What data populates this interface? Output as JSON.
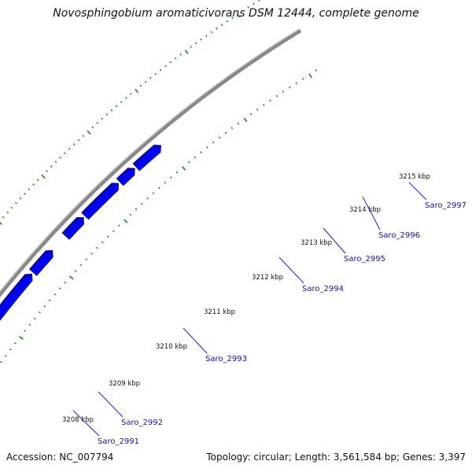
{
  "title": "Novosphingobium aromaticivorans DSM 12444, complete genome",
  "accession": "Accession: NC_007794",
  "topology": "Topology: circular; Length: 3,561,584 bp; Genes: 3,397",
  "colors": {
    "backbone": "#888888",
    "gene_fill": "#0000ee",
    "gene_shadow": "#00007a",
    "tick": "#1a8a1a",
    "label": "#1010c0",
    "leader": "#2020d0"
  },
  "kbp_labels": [
    "3208 kbp",
    "3209 kbp",
    "3210 kbp",
    "3211 kbp",
    "3212 kbp",
    "3213 kbp",
    "3214 kbp",
    "3215 kbp"
  ],
  "genes": [
    {
      "name": "Saro_2991"
    },
    {
      "name": "Saro_2992"
    },
    {
      "name": "Saro_2993"
    },
    {
      "name": "Saro_2994"
    },
    {
      "name": "Saro_2995"
    },
    {
      "name": "Saro_2996"
    },
    {
      "name": "Saro_2997"
    }
  ]
}
